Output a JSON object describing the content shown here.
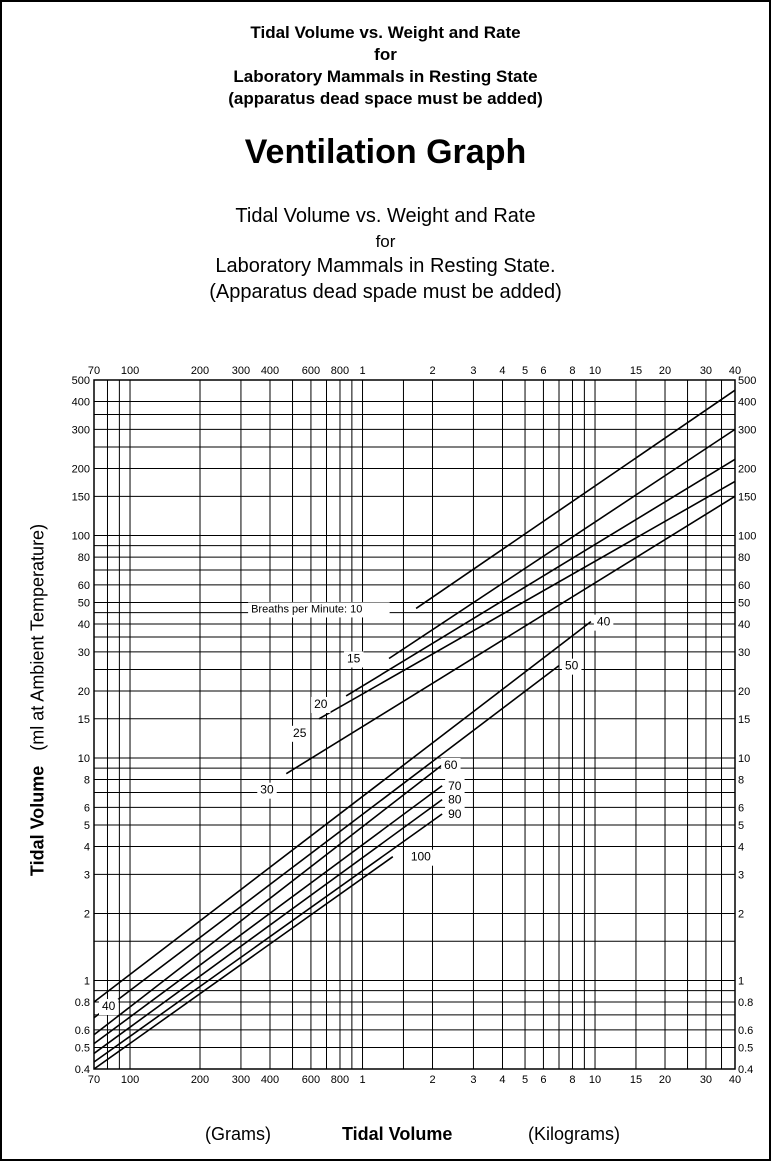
{
  "header": {
    "line1": "Tidal Volume vs. Weight and Rate",
    "line2": "for",
    "line3": "Laboratory Mammals in Resting State",
    "line4": "(apparatus dead space must be added)",
    "title": "Ventilation Graph",
    "sub1": "Tidal Volume vs. Weight and Rate",
    "sub2": "for",
    "sub3": "Laboratory Mammals in Resting State.",
    "sub4": "(Apparatus dead spade must be added)"
  },
  "axes": {
    "ylabel_bold": "Tidal Volume",
    "ylabel_rest": "(ml at Ambient Temperature)",
    "xlabel_left": "(Grams)",
    "xlabel_center": "Tidal Volume",
    "xlabel_right": "(Kilograms)"
  },
  "chart_data": {
    "type": "line",
    "x_scale": "log",
    "y_scale": "log",
    "x_unit_note": "body weight: grams (70-800) then kilograms (1-40)",
    "xlim": [
      70,
      40000
    ],
    "ylim": [
      0.4,
      500
    ],
    "x_ticks": [
      {
        "v": 70,
        "label": "70"
      },
      {
        "v": 100,
        "label": "100"
      },
      {
        "v": 200,
        "label": "200"
      },
      {
        "v": 300,
        "label": "300"
      },
      {
        "v": 400,
        "label": "400"
      },
      {
        "v": 600,
        "label": "600"
      },
      {
        "v": 800,
        "label": "800"
      },
      {
        "v": 1000,
        "label": "1"
      },
      {
        "v": 2000,
        "label": "2"
      },
      {
        "v": 3000,
        "label": "3"
      },
      {
        "v": 4000,
        "label": "4"
      },
      {
        "v": 5000,
        "label": "5"
      },
      {
        "v": 6000,
        "label": "6"
      },
      {
        "v": 8000,
        "label": "8"
      },
      {
        "v": 10000,
        "label": "10"
      },
      {
        "v": 15000,
        "label": "15"
      },
      {
        "v": 20000,
        "label": "20"
      },
      {
        "v": 30000,
        "label": "30"
      },
      {
        "v": 40000,
        "label": "40"
      }
    ],
    "y_ticks": [
      {
        "v": 0.4,
        "label": "0.4"
      },
      {
        "v": 0.5,
        "label": "0.5"
      },
      {
        "v": 0.6,
        "label": "0.6"
      },
      {
        "v": 0.8,
        "label": "0.8"
      },
      {
        "v": 1,
        "label": "1"
      },
      {
        "v": 2,
        "label": "2"
      },
      {
        "v": 3,
        "label": "3"
      },
      {
        "v": 4,
        "label": "4"
      },
      {
        "v": 5,
        "label": "5"
      },
      {
        "v": 6,
        "label": "6"
      },
      {
        "v": 8,
        "label": "8"
      },
      {
        "v": 10,
        "label": "10"
      },
      {
        "v": 15,
        "label": "15"
      },
      {
        "v": 20,
        "label": "20"
      },
      {
        "v": 30,
        "label": "30"
      },
      {
        "v": 40,
        "label": "40"
      },
      {
        "v": 50,
        "label": "50"
      },
      {
        "v": 60,
        "label": "60"
      },
      {
        "v": 80,
        "label": "80"
      },
      {
        "v": 100,
        "label": "100"
      },
      {
        "v": 150,
        "label": "150"
      },
      {
        "v": 200,
        "label": "200"
      },
      {
        "v": 300,
        "label": "300"
      },
      {
        "v": 400,
        "label": "400"
      },
      {
        "v": 500,
        "label": "500"
      }
    ],
    "extra_x_gridlines": [
      80,
      90,
      500,
      700,
      900,
      1500,
      7000,
      9000,
      25000,
      35000
    ],
    "extra_y_gridlines": [
      0.7,
      0.9,
      1.5,
      7,
      9,
      25,
      35,
      45,
      70,
      90,
      250,
      350
    ],
    "series_note": "Each line: rate in breaths per minute; start/end points are [weight in grams, tidal volume in ml].",
    "series": [
      {
        "name": "Breaths per Minute: 10",
        "start": [
          1700,
          47
        ],
        "end": [
          40000,
          450
        ]
      },
      {
        "name": "15",
        "start": [
          1300,
          28
        ],
        "end": [
          40000,
          300
        ]
      },
      {
        "name": "20",
        "start": [
          850,
          19
        ],
        "end": [
          40000,
          220
        ]
      },
      {
        "name": "25",
        "start": [
          650,
          15
        ],
        "end": [
          40000,
          175
        ]
      },
      {
        "name": "30",
        "start": [
          470,
          8.5
        ],
        "end": [
          40000,
          150
        ]
      },
      {
        "name": "40",
        "start": [
          70,
          0.8
        ],
        "end": [
          9600,
          41
        ]
      },
      {
        "name": "50",
        "start": [
          70,
          0.68
        ],
        "end": [
          7000,
          26
        ]
      },
      {
        "name": "60",
        "start": [
          70,
          0.57
        ],
        "end": [
          2200,
          9.3
        ]
      },
      {
        "name": "70",
        "start": [
          70,
          0.52
        ],
        "end": [
          2200,
          7.5
        ]
      },
      {
        "name": "80",
        "start": [
          70,
          0.47
        ],
        "end": [
          2200,
          6.5
        ]
      },
      {
        "name": "90",
        "start": [
          70,
          0.43
        ],
        "end": [
          2200,
          5.6
        ]
      },
      {
        "name": "100",
        "start": [
          70,
          0.4
        ],
        "end": [
          1350,
          3.6
        ]
      }
    ],
    "annotations": [
      {
        "text": "Breaths per Minute: 10",
        "series": "Breaths per Minute: 10"
      },
      {
        "text": "15",
        "series": "15"
      },
      {
        "text": "20",
        "series": "20"
      },
      {
        "text": "25",
        "series": "25"
      },
      {
        "text": "30",
        "series": "30"
      },
      {
        "text": "40",
        "series": "40"
      },
      {
        "text": "40",
        "series": "40"
      },
      {
        "text": "50",
        "series": "50"
      },
      {
        "text": "60",
        "series": "60"
      },
      {
        "text": "70",
        "series": "70"
      },
      {
        "text": "80",
        "series": "80"
      },
      {
        "text": "90",
        "series": "90"
      },
      {
        "text": "100",
        "series": "100"
      }
    ],
    "grid": true
  }
}
